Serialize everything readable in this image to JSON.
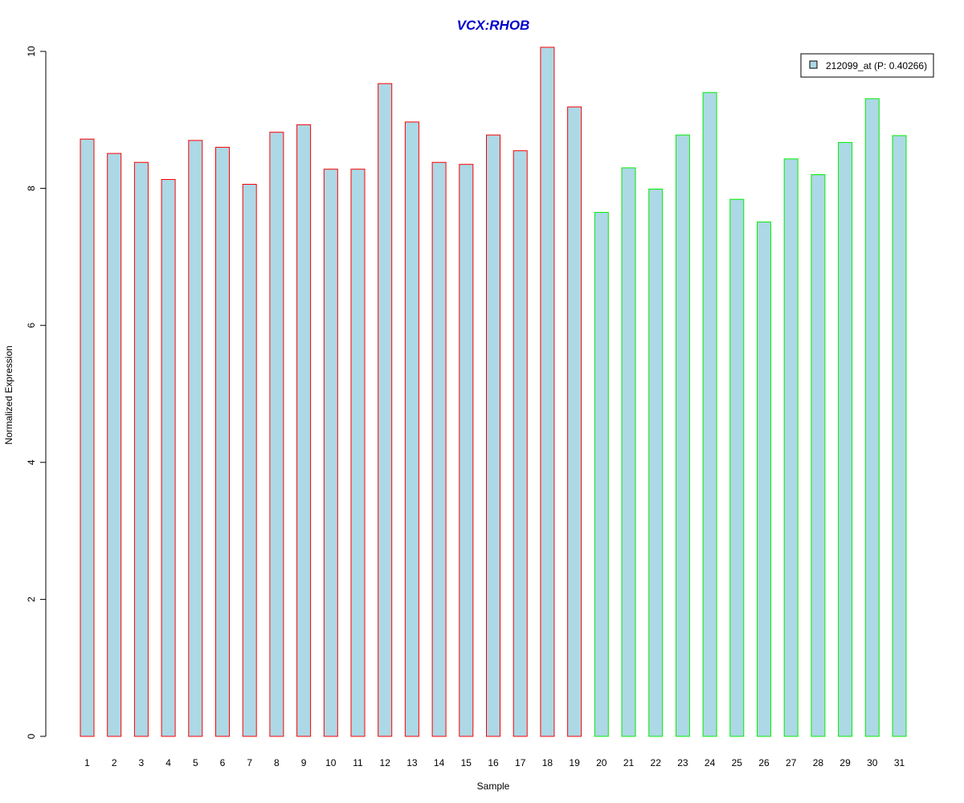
{
  "chart_data": {
    "type": "bar",
    "title": "VCX:RHOB",
    "xlabel": "Sample",
    "ylabel": "Normalized Expression",
    "ylim": [
      0,
      10
    ],
    "yticks": [
      0,
      2,
      4,
      6,
      8,
      10
    ],
    "grid": false,
    "legend_position": "top-right",
    "colors": {
      "title": "#0000cc",
      "bar_fill": "#add8e6",
      "group1_border": "#ff0000",
      "group2_border": "#00ee00",
      "axis": "#000000"
    },
    "categories": [
      "1",
      "2",
      "3",
      "4",
      "5",
      "6",
      "7",
      "8",
      "9",
      "10",
      "11",
      "12",
      "13",
      "14",
      "15",
      "16",
      "17",
      "18",
      "19",
      "20",
      "21",
      "22",
      "23",
      "24",
      "25",
      "26",
      "27",
      "28",
      "29",
      "30",
      "31"
    ],
    "series": [
      {
        "name": "212099_at (P: 0.40266)",
        "values": [
          8.72,
          8.51,
          8.38,
          8.13,
          8.7,
          8.6,
          8.06,
          8.82,
          8.93,
          8.28,
          8.28,
          9.53,
          8.97,
          8.38,
          8.35,
          8.78,
          8.55,
          10.06,
          9.19,
          7.65,
          8.3,
          7.99,
          8.78,
          9.4,
          7.84,
          7.51,
          8.43,
          8.2,
          8.67,
          9.31,
          8.77
        ],
        "group": [
          1,
          1,
          1,
          1,
          1,
          1,
          1,
          1,
          1,
          1,
          1,
          1,
          1,
          1,
          1,
          1,
          1,
          1,
          1,
          2,
          2,
          2,
          2,
          2,
          2,
          2,
          2,
          2,
          2,
          2,
          2
        ]
      }
    ]
  }
}
